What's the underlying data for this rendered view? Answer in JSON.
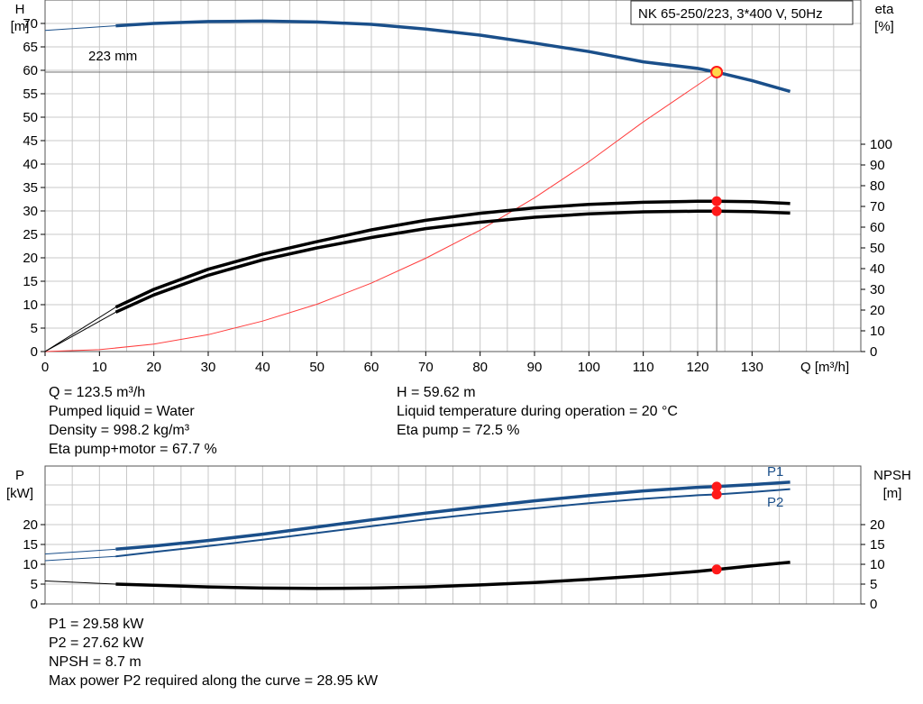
{
  "title": "NK 65-250/223, 3*400 V, 50Hz",
  "colors": {
    "blue": "#1a4f8a",
    "black": "#000000",
    "red_curve": "#ff3c3c",
    "marker": "#ff1a1a",
    "grid": "#c8c8c8",
    "op_line": "#707070"
  },
  "main_chart": {
    "left_axis": {
      "label_line1": "H",
      "label_line2": "[m]"
    },
    "right_axis": {
      "label_line1": "eta",
      "label_line2": "[%]"
    },
    "x_axis_unit": "Q [m³/h]",
    "head_curve_label": "223 mm",
    "info_left": [
      "Q = 123.5 m³/h",
      "Pumped liquid = Water",
      "Density = 998.2 kg/m³",
      "Eta pump+motor = 67.7 %"
    ],
    "info_right": [
      "H = 59.62 m",
      "Liquid temperature during operation = 20 °C",
      "Eta pump = 72.5 %"
    ]
  },
  "power_chart": {
    "left_axis": {
      "label_line1": "P",
      "label_line2": "[kW]"
    },
    "right_axis": {
      "label_line1": "NPSH",
      "label_line2": "[m]"
    },
    "series_labels": {
      "p1": "P1",
      "p2": "P2"
    },
    "info": [
      "P1 = 29.58 kW",
      "P2 = 27.62 kW",
      "NPSH = 8.7 m",
      "Max power P2 required along the curve = 28.95 kW"
    ]
  },
  "chart_data": [
    {
      "type": "line",
      "title": "NK 65-250/223, 3*400 V, 50Hz",
      "xlabel": "Q [m³/h]",
      "ylabel": "H [m]",
      "y2label": "eta [%]",
      "xlim": [
        0,
        150
      ],
      "ylim": [
        0,
        75
      ],
      "y2lim": [
        0,
        100
      ],
      "xticks": [
        0,
        10,
        20,
        30,
        40,
        50,
        60,
        70,
        80,
        90,
        100,
        110,
        120,
        130
      ],
      "yticks": [
        0,
        5,
        10,
        15,
        20,
        25,
        30,
        35,
        40,
        45,
        50,
        55,
        60,
        65,
        70
      ],
      "y2ticks": [
        0,
        10,
        20,
        30,
        40,
        50,
        60,
        70,
        80,
        90,
        100
      ],
      "grid": true,
      "operating_point": {
        "q": 123.5,
        "h": 59.62,
        "eta_pump": 72.5,
        "eta_pump_motor": 67.7
      },
      "series": [
        {
          "name": "223 mm",
          "axis": "left",
          "x": [
            0,
            13,
            20,
            30,
            40,
            50,
            60,
            70,
            80,
            90,
            100,
            110,
            120,
            123.5,
            130,
            137
          ],
          "y": [
            68.5,
            69.5,
            70.0,
            70.4,
            70.5,
            70.3,
            69.8,
            68.8,
            67.5,
            65.8,
            64.0,
            61.8,
            60.4,
            59.6,
            57.8,
            55.5
          ]
        },
        {
          "axis": "left",
          "x": [
            0,
            10,
            20,
            30,
            40,
            50,
            60,
            70,
            80,
            90,
            100,
            110,
            123.5
          ],
          "y": [
            0,
            0.4,
            1.6,
            3.6,
            6.5,
            10.1,
            14.6,
            19.9,
            25.9,
            32.8,
            40.5,
            49.0,
            59.62
          ]
        },
        {
          "name": "Eta pump",
          "axis": "right",
          "x": [
            0,
            13,
            20,
            30,
            40,
            50,
            60,
            70,
            80,
            90,
            100,
            110,
            120,
            123.5,
            130,
            137
          ],
          "y": [
            0,
            21.4,
            30.0,
            39.7,
            47.0,
            53.0,
            58.7,
            63.3,
            66.7,
            69.3,
            71.0,
            72.0,
            72.5,
            72.5,
            72.3,
            71.4
          ]
        },
        {
          "name": "Eta pump+motor",
          "axis": "right",
          "x": [
            0,
            13,
            20,
            30,
            40,
            50,
            60,
            70,
            80,
            90,
            100,
            110,
            120,
            123.5,
            130,
            137
          ],
          "y": [
            0,
            19.0,
            27.3,
            36.8,
            44.2,
            50.0,
            55.0,
            59.3,
            62.4,
            64.8,
            66.4,
            67.4,
            67.7,
            67.7,
            67.5,
            66.8
          ]
        }
      ]
    },
    {
      "type": "line",
      "ylabel": "P [kW]",
      "y2label": "NPSH [m]",
      "xlim": [
        0,
        150
      ],
      "ylim": [
        0,
        35
      ],
      "y2lim": [
        0,
        35
      ],
      "yticks": [
        0,
        5,
        10,
        15,
        20
      ],
      "y2ticks": [
        0,
        5,
        10,
        15,
        20
      ],
      "grid": true,
      "series": [
        {
          "name": "P1",
          "axis": "left",
          "x": [
            0,
            13,
            20,
            30,
            40,
            50,
            60,
            70,
            80,
            90,
            100,
            110,
            120,
            123.5,
            130,
            137
          ],
          "y": [
            12.6,
            13.8,
            14.6,
            16.0,
            17.6,
            19.4,
            21.2,
            22.9,
            24.5,
            26.0,
            27.3,
            28.5,
            29.4,
            29.58,
            30.1,
            30.7
          ]
        },
        {
          "name": "P2",
          "axis": "left",
          "x": [
            0,
            13,
            20,
            30,
            40,
            50,
            60,
            70,
            80,
            90,
            100,
            110,
            120,
            123.5,
            130,
            137
          ],
          "y": [
            10.9,
            12.0,
            13.1,
            14.6,
            16.2,
            17.9,
            19.6,
            21.3,
            22.8,
            24.1,
            25.4,
            26.5,
            27.4,
            27.62,
            28.2,
            28.95
          ]
        },
        {
          "name": "NPSH",
          "axis": "right",
          "x": [
            0,
            13,
            20,
            30,
            40,
            50,
            60,
            70,
            80,
            90,
            100,
            110,
            120,
            123.5,
            130,
            137
          ],
          "y": [
            5.8,
            5.0,
            4.7,
            4.3,
            4.0,
            3.9,
            4.0,
            4.3,
            4.8,
            5.4,
            6.2,
            7.1,
            8.2,
            8.7,
            9.6,
            10.5
          ]
        }
      ]
    }
  ]
}
